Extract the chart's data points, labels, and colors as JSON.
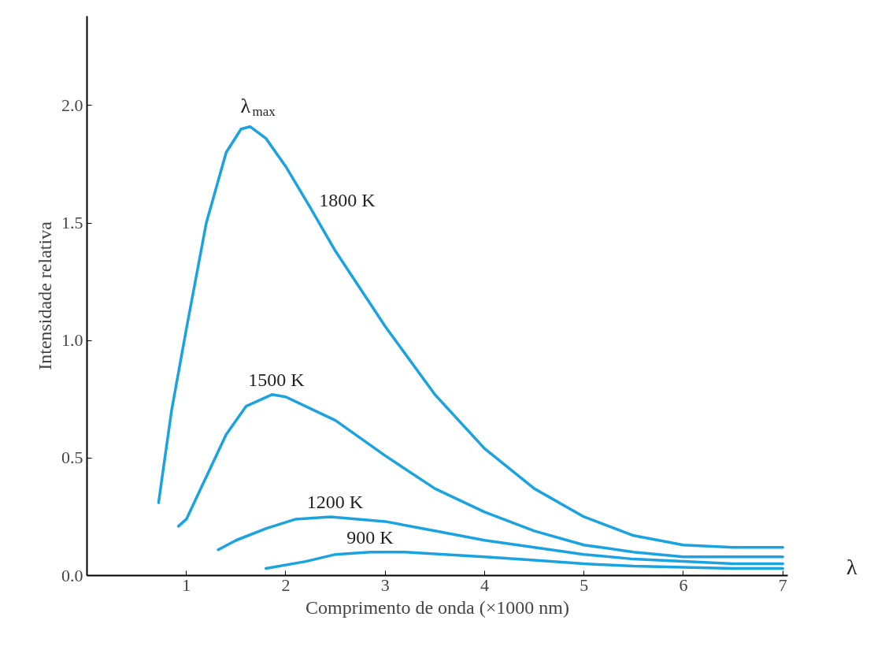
{
  "chart_data": {
    "type": "line",
    "xlabel": "Comprimento de onda (×1000 nm)",
    "ylabel": "Intensidade relativa",
    "xlim": [
      0,
      7.05
    ],
    "ylim": [
      0,
      2.38
    ],
    "xticks": [
      1,
      2,
      3,
      4,
      5,
      6,
      7
    ],
    "yticks": [
      {
        "value": 0,
        "label": "0.0"
      },
      {
        "value": 0.5,
        "label": "0.5"
      },
      {
        "value": 1,
        "label": "1.0"
      },
      {
        "value": 1.5,
        "label": "1.5"
      },
      {
        "value": 2,
        "label": "2.0"
      }
    ],
    "grid": false,
    "marker": "none",
    "line_style": "solid",
    "series": [
      {
        "name": "1800 K",
        "color": "#1aa3e0",
        "x": [
          0.72,
          0.85,
          1.0,
          1.2,
          1.4,
          1.55,
          1.64,
          1.8,
          2.0,
          2.24,
          2.5,
          3.0,
          3.5,
          4.0,
          4.5,
          5.0,
          5.5,
          6.0,
          6.5,
          7.0
        ],
        "values": [
          0.31,
          0.7,
          1.05,
          1.5,
          1.8,
          1.9,
          1.91,
          1.86,
          1.74,
          1.57,
          1.38,
          1.06,
          0.77,
          0.54,
          0.37,
          0.25,
          0.17,
          0.13,
          0.12,
          0.12
        ]
      },
      {
        "name": "1500 K",
        "color": "#1aa3e0",
        "x": [
          0.92,
          1.0,
          1.2,
          1.4,
          1.6,
          1.86,
          2.0,
          2.5,
          3.0,
          3.5,
          4.0,
          4.5,
          5.0,
          5.5,
          6.0,
          6.5,
          7.0
        ],
        "values": [
          0.21,
          0.24,
          0.42,
          0.6,
          0.72,
          0.77,
          0.76,
          0.66,
          0.51,
          0.37,
          0.27,
          0.19,
          0.13,
          0.1,
          0.08,
          0.08,
          0.08
        ]
      },
      {
        "name": "1200 K",
        "color": "#1aa3e0",
        "x": [
          1.32,
          1.5,
          1.8,
          2.1,
          2.45,
          3.0,
          3.5,
          4.0,
          4.5,
          5.0,
          5.5,
          6.0,
          6.5,
          7.0
        ],
        "values": [
          0.11,
          0.15,
          0.2,
          0.24,
          0.25,
          0.23,
          0.19,
          0.15,
          0.12,
          0.09,
          0.07,
          0.06,
          0.05,
          0.05
        ]
      },
      {
        "name": "900 K",
        "color": "#1aa3e0",
        "x": [
          1.8,
          2.2,
          2.5,
          2.85,
          3.2,
          3.6,
          4.0,
          4.5,
          5.0,
          5.5,
          6.0,
          6.5,
          7.0
        ],
        "values": [
          0.03,
          0.06,
          0.09,
          0.1,
          0.1,
          0.09,
          0.08,
          0.065,
          0.05,
          0.04,
          0.035,
          0.03,
          0.03
        ]
      }
    ],
    "annotations": [
      {
        "text": "λ$_{max}$",
        "x": 1.64,
        "y": 1.91
      },
      "λ"
    ]
  }
}
